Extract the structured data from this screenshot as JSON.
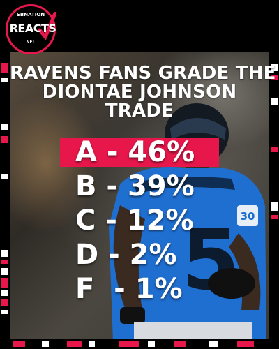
{
  "brand": {
    "top_text": "SBNATION",
    "main_text": "REACTS",
    "bottom_text": "NFL",
    "accent_color": "#e8174b"
  },
  "headline": {
    "line1": "RAVENS FANS GRADE THE",
    "line2": "DIONTAE JOHNSON",
    "line3": "TRADE"
  },
  "grades": [
    {
      "label": "A - 46%",
      "highlighted": true
    },
    {
      "label": "B - 39%",
      "highlighted": false
    },
    {
      "label": "C - 12%",
      "highlighted": false
    },
    {
      "label": "D - 2%",
      "highlighted": false
    },
    {
      "label": "F  - 1%",
      "highlighted": false
    }
  ],
  "photo": {
    "jersey_number": "5",
    "sleeve_patch": "30"
  }
}
